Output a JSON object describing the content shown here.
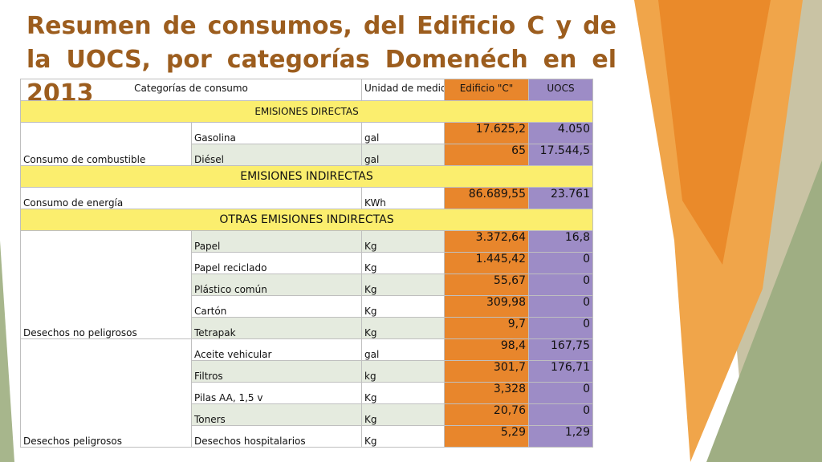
{
  "title": "Resumen de consumos, del Edificio C y de la UOCS, por categorías Domenéch en el 2013",
  "table": {
    "headers": [
      "Categorías de consumo",
      "Unidad de medida física",
      "Edificio \"C\"",
      "UOCS"
    ],
    "sections": [
      {
        "title": "EMISIONES DIRECTAS",
        "groups": [
          {
            "label": "Consumo de combustible",
            "rows": [
              [
                "Gasolina",
                "gal",
                "17.625,2",
                "4.050"
              ],
              [
                "Diésel",
                "gal",
                "65",
                "17.544,5"
              ]
            ]
          }
        ]
      },
      {
        "title": "EMISIONES INDIRECTAS",
        "groups": [
          {
            "label": "Consumo de energía",
            "rows": [
              [
                "KWh",
                "86.689,55",
                "23.761"
              ]
            ]
          }
        ]
      },
      {
        "title": "OTRAS EMISIONES INDIRECTAS",
        "groups": [
          {
            "label": "Desechos no peligrosos",
            "rows": [
              [
                "Papel",
                "Kg",
                "3.372,64",
                "16,8"
              ],
              [
                "Papel  reciclado",
                "Kg",
                "1.445,42",
                "0"
              ],
              [
                "Plástico común",
                "Kg",
                "55,67",
                "0"
              ],
              [
                "Cartón",
                "Kg",
                "309,98",
                "0"
              ],
              [
                "Tetrapak",
                "Kg",
                "9,7",
                "0"
              ]
            ]
          },
          {
            "label": "Desechos peligrosos",
            "rows": [
              [
                "Aceite vehicular",
                "gal",
                "98,4",
                "167,75"
              ],
              [
                "Filtros",
                "kg",
                "301,7",
                "176,71"
              ],
              [
                "Pilas AA, 1,5 v",
                "Kg",
                "3,328",
                "0"
              ],
              [
                "Toners",
                "Kg",
                "20,76",
                "0"
              ],
              [
                "Desechos hospitalarios",
                "Kg",
                "5,29",
                "1,29"
              ]
            ]
          }
        ]
      }
    ]
  }
}
